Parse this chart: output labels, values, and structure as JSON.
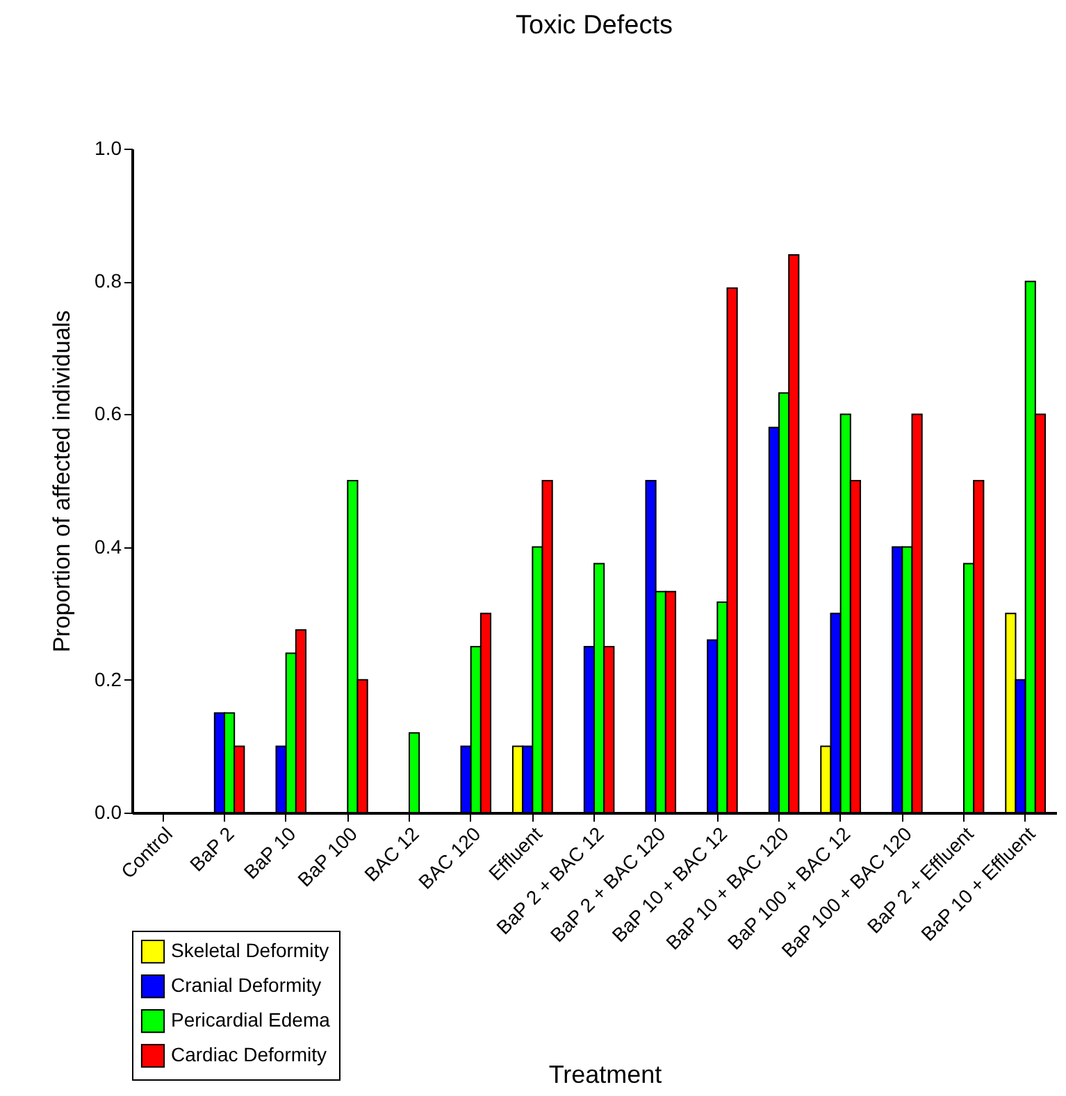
{
  "chart_data": {
    "type": "bar",
    "title": "Toxic Defects",
    "xlabel": "Treatment",
    "ylabel": "Proportion of affected individuals",
    "categories": [
      "Control",
      "BaP 2",
      "BaP 10",
      "BaP 100",
      "BAC 12",
      "BAC 120",
      "Effluent",
      "BaP 2 + BAC 12",
      "BaP 2 + BAC 120",
      "BaP 10 + BAC 12",
      "BaP 10 + BAC 120",
      "BaP 100 + BAC 12",
      "BaP 100 + BAC 120",
      "BaP 2 + Effluent",
      "BaP 10 + Effluent"
    ],
    "series": [
      {
        "name": "Skeletal Deformity",
        "color": "#ffff00",
        "values": [
          null,
          null,
          null,
          null,
          null,
          null,
          0.1,
          null,
          null,
          null,
          null,
          0.1,
          null,
          null,
          0.3
        ]
      },
      {
        "name": "Cranial Deformity",
        "color": "#0000ff",
        "values": [
          null,
          0.15,
          0.1,
          null,
          null,
          0.1,
          0.1,
          0.25,
          0.5,
          0.26,
          0.58,
          0.3,
          0.4,
          null,
          0.2
        ]
      },
      {
        "name": "Pericardial Edema",
        "color": "#00ff00",
        "values": [
          null,
          0.15,
          0.24,
          0.5,
          0.12,
          0.25,
          0.4,
          0.375,
          0.333,
          0.317,
          0.632,
          0.6,
          0.4,
          0.375,
          0.8
        ]
      },
      {
        "name": "Cardiac Deformity",
        "color": "#ff0000",
        "values": [
          null,
          0.1,
          0.275,
          0.2,
          null,
          0.3,
          0.5,
          0.25,
          0.333,
          0.79,
          0.84,
          0.5,
          0.6,
          0.5,
          0.6
        ]
      }
    ],
    "ylim": [
      0,
      1.0
    ],
    "yticks": [
      {
        "value": 0,
        "label": "0.0"
      },
      {
        "value": 0.2,
        "label": "0.2"
      },
      {
        "value": 0.4,
        "label": "0.4"
      },
      {
        "value": 0.6,
        "label": "0.6"
      },
      {
        "value": 0.8,
        "label": "0.8"
      },
      {
        "value": 1.0,
        "label": "1.0"
      }
    ],
    "grid": false,
    "legend": "bottom left"
  }
}
